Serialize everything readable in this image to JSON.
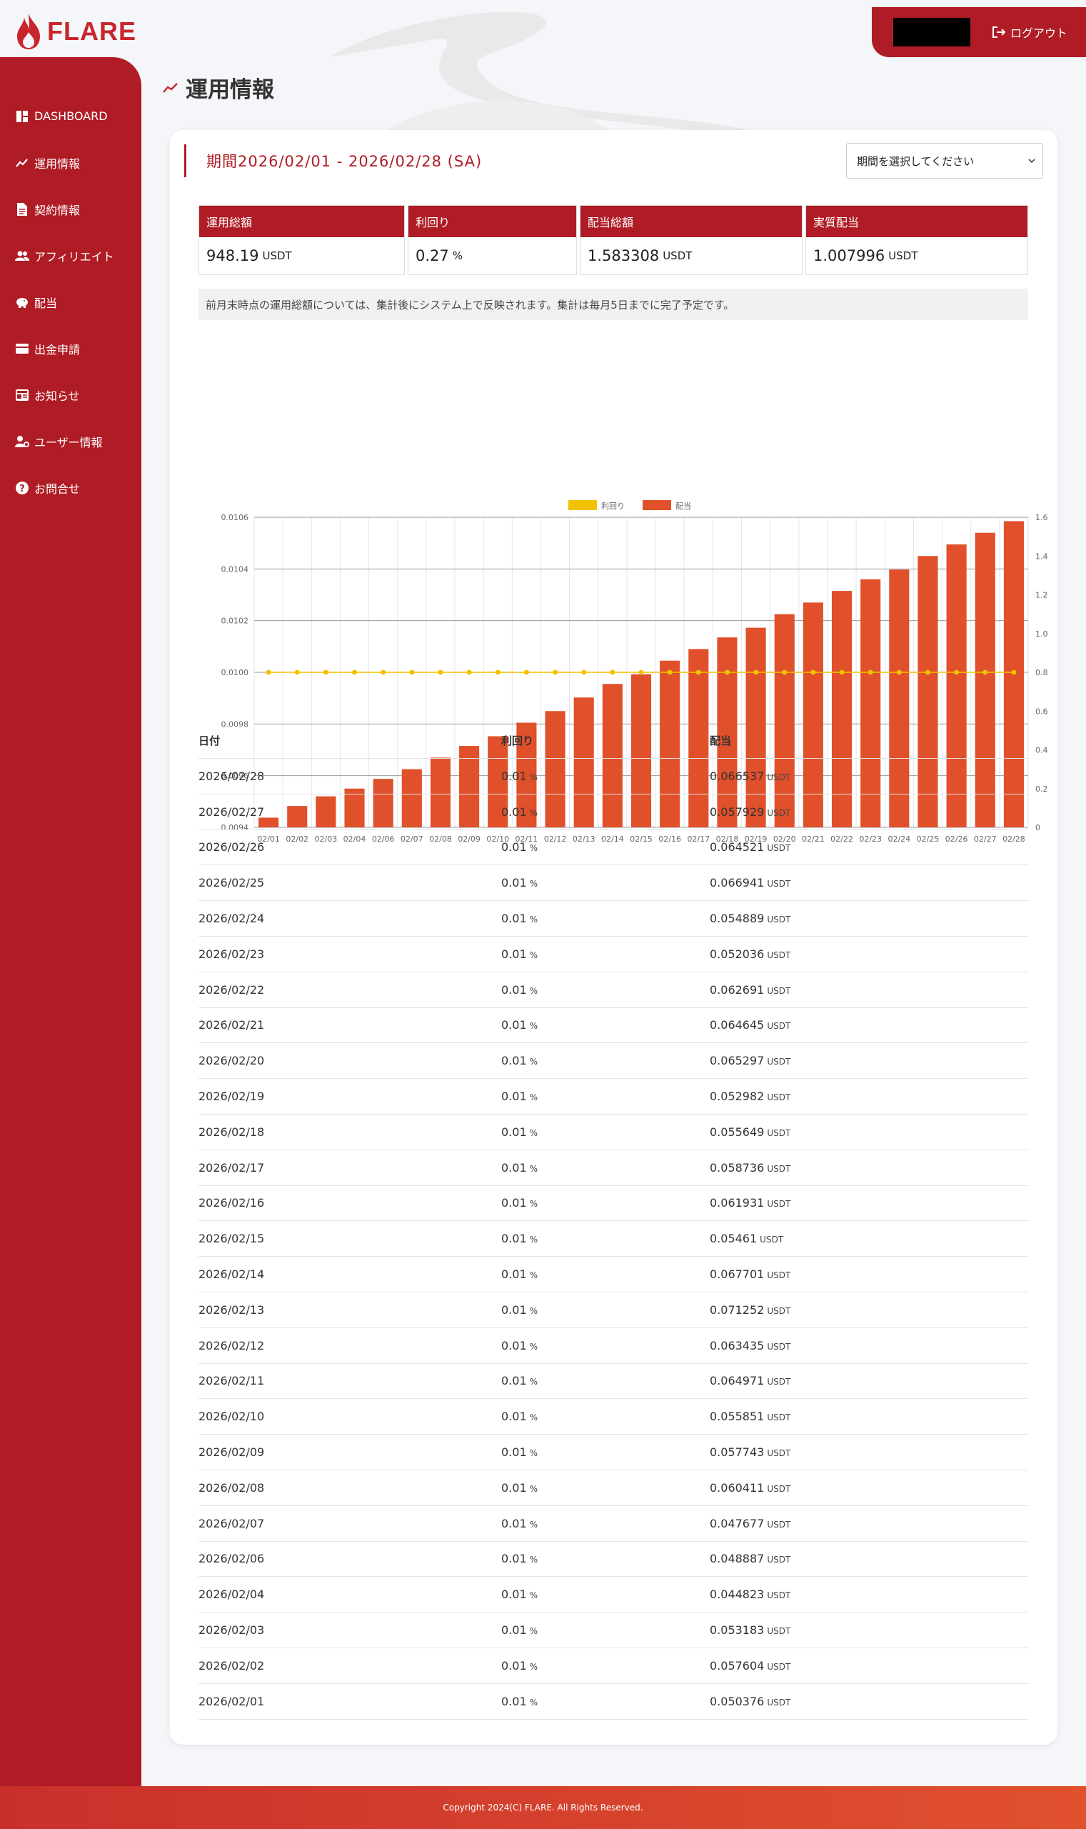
{
  "brand": {
    "name": "FLARE"
  },
  "topbar": {
    "logout_label": "ログアウト"
  },
  "sidebar": {
    "items": [
      {
        "label": "DASHBOARD",
        "icon": "dashboard-icon"
      },
      {
        "label": "運用情報",
        "icon": "trend-icon"
      },
      {
        "label": "契約情報",
        "icon": "document-icon"
      },
      {
        "label": "アフィリエイト",
        "icon": "users-icon"
      },
      {
        "label": "配当",
        "icon": "piggy-bank-icon"
      },
      {
        "label": "出金申請",
        "icon": "wallet-icon"
      },
      {
        "label": "お知らせ",
        "icon": "news-icon"
      },
      {
        "label": "ユーザー情報",
        "icon": "user-gear-icon"
      },
      {
        "label": "お問合せ",
        "icon": "help-icon"
      }
    ]
  },
  "page": {
    "title": "運用情報"
  },
  "period": {
    "title": "期間2026/02/01 - 2026/02/28 (SA)",
    "select_value": "期間を選択してください"
  },
  "stats": [
    {
      "label": "運用総額",
      "value": "948.19",
      "unit": "USDT"
    },
    {
      "label": "利回り",
      "value": "0.27",
      "unit": "%"
    },
    {
      "label": "配当総額",
      "value": "1.583308",
      "unit": "USDT"
    },
    {
      "label": "実質配当",
      "value": "1.007996",
      "unit": "USDT"
    }
  ],
  "notice": "前月末時点の運用総額については、集計後にシステム上で反映されます。集計は毎月5日までに完了予定です。",
  "colors": {
    "accent": "#b01c25",
    "bar": "#e0502a",
    "line": "#f2c100"
  },
  "chart_data": {
    "type": "bar",
    "categories": [
      "02/01",
      "02/02",
      "02/03",
      "02/04",
      "02/06",
      "02/07",
      "02/08",
      "02/09",
      "02/10",
      "02/11",
      "02/12",
      "02/13",
      "02/14",
      "02/15",
      "02/16",
      "02/17",
      "02/18",
      "02/19",
      "02/20",
      "02/21",
      "02/22",
      "02/23",
      "02/24",
      "02/25",
      "02/26",
      "02/27",
      "02/28"
    ],
    "series": [
      {
        "name": "利回り",
        "type": "line",
        "axis": "left",
        "values": [
          0.01,
          0.01,
          0.01,
          0.01,
          0.01,
          0.01,
          0.01,
          0.01,
          0.01,
          0.01,
          0.01,
          0.01,
          0.01,
          0.01,
          0.01,
          0.01,
          0.01,
          0.01,
          0.01,
          0.01,
          0.01,
          0.01,
          0.01,
          0.01,
          0.01,
          0.01,
          0.01
        ]
      },
      {
        "name": "配当",
        "type": "bar",
        "axis": "right",
        "values": [
          0.05,
          0.11,
          0.16,
          0.2,
          0.25,
          0.3,
          0.36,
          0.42,
          0.47,
          0.54,
          0.6,
          0.67,
          0.74,
          0.79,
          0.86,
          0.92,
          0.98,
          1.03,
          1.1,
          1.16,
          1.22,
          1.28,
          1.33,
          1.4,
          1.46,
          1.52,
          1.58
        ]
      }
    ],
    "left_axis": {
      "ticks": [
        "0.0106",
        "0.0104",
        "0.0102",
        "0.0100",
        "0.0098",
        "0.0096",
        "0.0094"
      ],
      "ylim": [
        0.0094,
        0.0106
      ]
    },
    "right_axis": {
      "ticks": [
        "1.6",
        "1.4",
        "1.2",
        "1.0",
        "0.8",
        "0.6",
        "0.4",
        "0.2",
        "0"
      ],
      "ylim": [
        0,
        1.6
      ]
    },
    "legend": "top-center",
    "grid": true
  },
  "table": {
    "headers": [
      "日付",
      "利回り",
      "配当"
    ],
    "rate_unit": "%",
    "dividend_unit": "USDT",
    "rows": [
      {
        "date": "2026/02/28",
        "rate": "0.01",
        "dividend": "0.066537"
      },
      {
        "date": "2026/02/27",
        "rate": "0.01",
        "dividend": "0.057929"
      },
      {
        "date": "2026/02/26",
        "rate": "0.01",
        "dividend": "0.064521"
      },
      {
        "date": "2026/02/25",
        "rate": "0.01",
        "dividend": "0.066941"
      },
      {
        "date": "2026/02/24",
        "rate": "0.01",
        "dividend": "0.054889"
      },
      {
        "date": "2026/02/23",
        "rate": "0.01",
        "dividend": "0.052036"
      },
      {
        "date": "2026/02/22",
        "rate": "0.01",
        "dividend": "0.062691"
      },
      {
        "date": "2026/02/21",
        "rate": "0.01",
        "dividend": "0.064645"
      },
      {
        "date": "2026/02/20",
        "rate": "0.01",
        "dividend": "0.065297"
      },
      {
        "date": "2026/02/19",
        "rate": "0.01",
        "dividend": "0.052982"
      },
      {
        "date": "2026/02/18",
        "rate": "0.01",
        "dividend": "0.055649"
      },
      {
        "date": "2026/02/17",
        "rate": "0.01",
        "dividend": "0.058736"
      },
      {
        "date": "2026/02/16",
        "rate": "0.01",
        "dividend": "0.061931"
      },
      {
        "date": "2026/02/15",
        "rate": "0.01",
        "dividend": "0.05461"
      },
      {
        "date": "2026/02/14",
        "rate": "0.01",
        "dividend": "0.067701"
      },
      {
        "date": "2026/02/13",
        "rate": "0.01",
        "dividend": "0.071252"
      },
      {
        "date": "2026/02/12",
        "rate": "0.01",
        "dividend": "0.063435"
      },
      {
        "date": "2026/02/11",
        "rate": "0.01",
        "dividend": "0.064971"
      },
      {
        "date": "2026/02/10",
        "rate": "0.01",
        "dividend": "0.055851"
      },
      {
        "date": "2026/02/09",
        "rate": "0.01",
        "dividend": "0.057743"
      },
      {
        "date": "2026/02/08",
        "rate": "0.01",
        "dividend": "0.060411"
      },
      {
        "date": "2026/02/07",
        "rate": "0.01",
        "dividend": "0.047677"
      },
      {
        "date": "2026/02/06",
        "rate": "0.01",
        "dividend": "0.048887"
      },
      {
        "date": "2026/02/04",
        "rate": "0.01",
        "dividend": "0.044823"
      },
      {
        "date": "2026/02/03",
        "rate": "0.01",
        "dividend": "0.053183"
      },
      {
        "date": "2026/02/02",
        "rate": "0.01",
        "dividend": "0.057604"
      },
      {
        "date": "2026/02/01",
        "rate": "0.01",
        "dividend": "0.050376"
      }
    ]
  },
  "footer": {
    "copyright": "Copyright 2024(C) FLARE. All Rights Reserved."
  }
}
